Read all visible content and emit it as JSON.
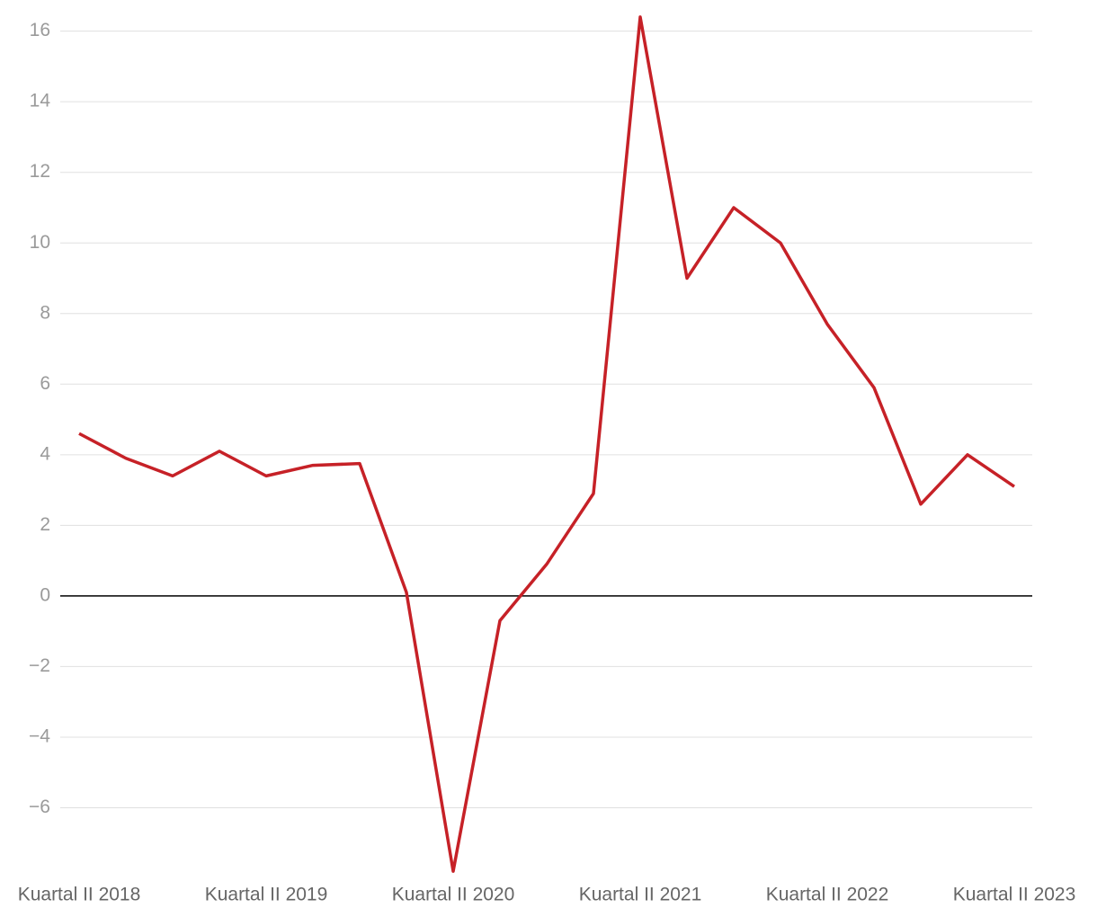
{
  "chart_data": {
    "type": "line",
    "categories": [
      "Kuartal II 2018",
      null,
      null,
      null,
      "Kuartal II 2019",
      null,
      null,
      null,
      "Kuartal II 2020",
      null,
      null,
      null,
      "Kuartal II 2021",
      null,
      null,
      null,
      "Kuartal II 2022",
      null,
      null,
      null,
      "Kuartal II 2023"
    ],
    "values": [
      4.6,
      3.9,
      3.4,
      4.1,
      3.4,
      3.7,
      3.75,
      0.1,
      -7.8,
      -0.7,
      0.9,
      2.9,
      16.4,
      9.0,
      11.0,
      10.0,
      7.7,
      5.9,
      2.6,
      4.0,
      3.1
    ],
    "color": "#c62127",
    "ylim": [
      -8,
      16.5
    ],
    "yticks": [
      {
        "value": -6,
        "label": "−6"
      },
      {
        "value": -4,
        "label": "−4"
      },
      {
        "value": -2,
        "label": "−2"
      },
      0,
      2,
      4,
      6,
      8,
      10,
      12,
      14,
      16
    ],
    "grid": true
  }
}
